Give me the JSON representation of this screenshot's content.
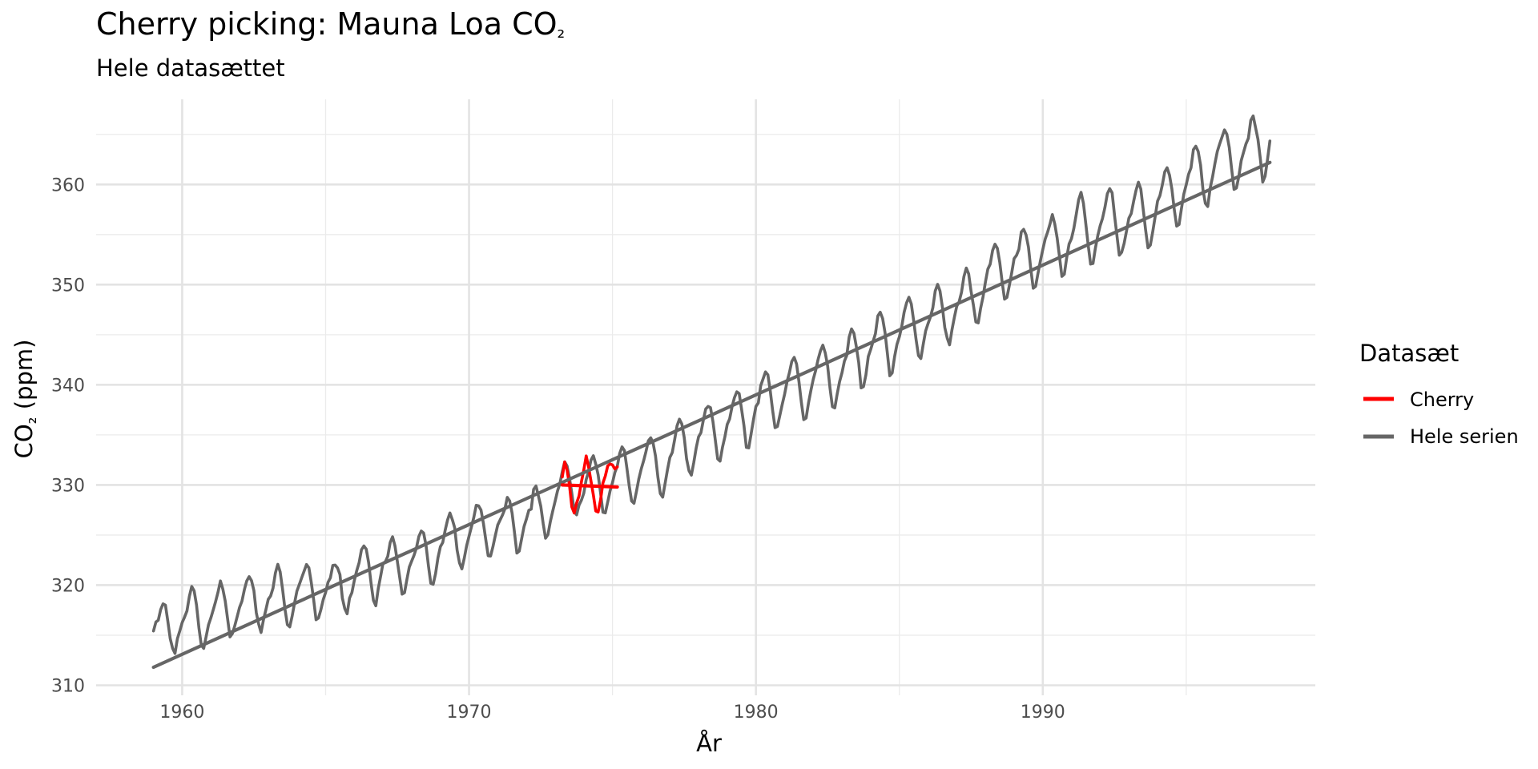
{
  "chart": {
    "title_main": "Cherry picking: Mauna Loa CO",
    "title_sub": "₂",
    "subtitle": "Hele datasættet"
  },
  "chart_data": {
    "type": "line",
    "xlabel": "År",
    "ylabel_main": "CO",
    "ylabel_sub": "₂",
    "ylabel_rest": " (ppm)",
    "xlim": [
      1957,
      1999.5
    ],
    "ylim": [
      309,
      368.5
    ],
    "x_ticks": [
      1960,
      1970,
      1980,
      1990
    ],
    "y_ticks": [
      310,
      320,
      330,
      340,
      350,
      360
    ],
    "grid": true,
    "legend": {
      "title": "Datasæt",
      "position": "right",
      "entries": [
        {
          "label": "Cherry",
          "color": "#ff0000"
        },
        {
          "label": "Hele serien",
          "color": "#666666"
        }
      ]
    },
    "series": [
      {
        "name": "Hele serien",
        "color": "#666666",
        "kind": "monthly",
        "x_start": 1959.0,
        "x_end": 1997.917,
        "values": [
          315.42,
          316.31,
          316.5,
          317.56,
          318.13,
          318.0,
          316.39,
          314.65,
          313.68,
          313.18,
          314.66,
          315.43,
          316.27,
          316.81,
          317.42,
          318.87,
          319.87,
          319.43,
          318.01,
          315.74,
          314.0,
          313.68,
          314.84,
          316.03,
          316.73,
          317.54,
          318.38,
          319.31,
          320.42,
          319.61,
          318.42,
          316.63,
          314.83,
          315.16,
          315.94,
          316.85,
          317.78,
          318.4,
          319.53,
          320.42,
          320.85,
          320.45,
          319.45,
          317.25,
          316.11,
          315.27,
          316.53,
          317.53,
          318.58,
          318.92,
          319.7,
          321.22,
          322.08,
          321.31,
          319.58,
          317.61,
          316.05,
          315.83,
          316.91,
          318.2,
          319.41,
          320.07,
          320.74,
          321.4,
          322.06,
          321.73,
          320.27,
          318.54,
          316.54,
          316.71,
          317.53,
          318.55,
          319.27,
          320.28,
          320.73,
          321.97,
          322.0,
          321.71,
          321.05,
          318.71,
          317.66,
          317.14,
          318.7,
          319.25,
          320.46,
          321.43,
          322.23,
          323.54,
          323.91,
          323.59,
          322.24,
          320.2,
          318.48,
          317.94,
          319.63,
          320.87,
          322.17,
          322.34,
          322.88,
          324.25,
          324.83,
          323.93,
          322.38,
          320.76,
          319.1,
          319.24,
          320.56,
          321.8,
          322.4,
          322.99,
          323.73,
          324.86,
          325.4,
          325.2,
          323.98,
          321.95,
          320.18,
          320.09,
          321.16,
          322.74,
          323.83,
          324.26,
          325.47,
          326.5,
          327.21,
          326.54,
          325.72,
          323.5,
          322.22,
          321.62,
          322.69,
          323.95,
          324.89,
          325.82,
          326.77,
          327.97,
          327.91,
          327.5,
          326.18,
          324.53,
          322.93,
          322.9,
          323.85,
          324.96,
          326.01,
          326.51,
          327.01,
          327.62,
          328.76,
          328.4,
          327.2,
          325.27,
          323.2,
          323.4,
          324.63,
          325.85,
          326.6,
          327.47,
          327.58,
          329.56,
          329.9,
          328.92,
          327.88,
          326.16,
          324.68,
          325.04,
          326.34,
          327.39,
          328.37,
          329.4,
          330.14,
          331.33,
          332.31,
          331.9,
          330.7,
          329.15,
          327.35,
          327.02,
          327.99,
          328.48,
          329.18,
          330.55,
          331.32,
          332.48,
          332.92,
          332.08,
          331.01,
          329.23,
          327.27,
          327.21,
          328.29,
          329.41,
          330.23,
          331.25,
          331.87,
          333.14,
          333.8,
          333.43,
          331.73,
          329.9,
          328.4,
          328.17,
          329.32,
          330.59,
          331.58,
          332.39,
          333.33,
          334.41,
          334.71,
          334.17,
          332.89,
          330.77,
          329.14,
          328.78,
          330.14,
          331.52,
          332.75,
          333.24,
          334.53,
          335.9,
          336.57,
          336.1,
          334.76,
          332.59,
          331.42,
          330.98,
          332.24,
          333.68,
          334.8,
          335.22,
          336.47,
          337.59,
          337.84,
          337.72,
          336.37,
          334.51,
          332.6,
          332.38,
          333.75,
          334.78,
          336.05,
          336.59,
          337.79,
          338.71,
          339.3,
          339.12,
          337.56,
          335.92,
          333.75,
          333.7,
          335.12,
          336.56,
          337.84,
          338.19,
          339.91,
          340.6,
          341.29,
          341.0,
          339.39,
          337.43,
          335.72,
          335.84,
          336.93,
          338.04,
          339.06,
          340.3,
          341.21,
          342.33,
          342.74,
          342.08,
          340.32,
          338.26,
          336.52,
          336.68,
          338.19,
          339.44,
          340.57,
          341.44,
          342.53,
          343.39,
          343.96,
          343.18,
          341.88,
          339.65,
          337.81,
          337.69,
          339.09,
          340.32,
          341.2,
          342.35,
          342.93,
          344.77,
          345.58,
          345.14,
          343.81,
          342.21,
          339.69,
          339.82,
          340.98,
          342.82,
          343.52,
          344.33,
          345.11,
          346.88,
          347.25,
          346.62,
          345.22,
          343.11,
          340.9,
          341.18,
          342.8,
          344.04,
          344.79,
          345.82,
          347.25,
          348.17,
          348.74,
          348.07,
          346.38,
          344.51,
          342.92,
          342.62,
          344.06,
          345.38,
          346.11,
          346.78,
          347.68,
          349.37,
          350.03,
          349.37,
          347.76,
          345.73,
          344.68,
          343.99,
          345.48,
          346.72,
          347.84,
          348.29,
          349.23,
          350.8,
          351.66,
          351.07,
          349.33,
          347.92,
          346.27,
          346.18,
          347.64,
          348.78,
          350.25,
          351.54,
          352.05,
          353.41,
          354.04,
          353.62,
          352.22,
          350.27,
          348.55,
          348.72,
          349.91,
          351.18,
          352.6,
          352.92,
          353.53,
          355.26,
          355.52,
          354.97,
          353.75,
          351.52,
          349.64,
          349.83,
          351.14,
          352.37,
          353.5,
          354.55,
          355.23,
          356.04,
          357.0,
          356.07,
          354.67,
          352.76,
          350.82,
          351.04,
          352.69,
          354.07,
          354.59,
          355.63,
          357.03,
          358.48,
          359.22,
          358.12,
          356.06,
          353.92,
          352.05,
          352.11,
          353.64,
          354.89,
          355.88,
          356.63,
          357.72,
          359.07,
          359.58,
          359.17,
          356.94,
          354.92,
          352.94,
          353.23,
          354.09,
          355.33,
          356.63,
          357.1,
          358.32,
          359.41,
          360.23,
          359.55,
          357.53,
          355.48,
          353.67,
          353.95,
          355.3,
          356.78,
          358.34,
          358.89,
          359.95,
          361.25,
          361.67,
          360.94,
          359.55,
          357.49,
          355.84,
          356.0,
          357.59,
          359.05,
          359.98,
          361.03,
          361.66,
          363.48,
          363.82,
          363.3,
          361.94,
          359.5,
          358.11,
          357.8,
          359.61,
          360.74,
          362.09,
          363.29,
          364.06,
          364.76,
          365.45,
          365.01,
          363.7,
          361.54,
          359.51,
          359.65,
          360.8,
          362.38,
          363.23,
          364.06,
          364.61,
          366.4,
          366.84,
          365.68,
          364.52,
          362.57,
          360.24,
          360.83,
          362.49,
          364.34
        ]
      },
      {
        "name": "Cherry",
        "color": "#ff0000",
        "kind": "monthly",
        "x_start": 1973.25,
        "x_end": 1975.167,
        "values": [
          330.8,
          332.3,
          331.5,
          330.0,
          327.8,
          327.2,
          328.2,
          328.9,
          330.3,
          331.5,
          332.9,
          331.8,
          330.4,
          329.0,
          327.4,
          327.3,
          328.5,
          330.2,
          330.9,
          331.9,
          332.1,
          332.0,
          331.6,
          331.8
        ]
      }
    ],
    "trend_lines": [
      {
        "series": "Hele serien",
        "color": "#666666",
        "x": [
          1959.0,
          1997.917
        ],
        "y": [
          311.8,
          362.2
        ]
      },
      {
        "series": "Cherry",
        "color": "#ff0000",
        "x": [
          1973.25,
          1975.167
        ],
        "y": [
          330.0,
          329.8
        ]
      }
    ]
  }
}
